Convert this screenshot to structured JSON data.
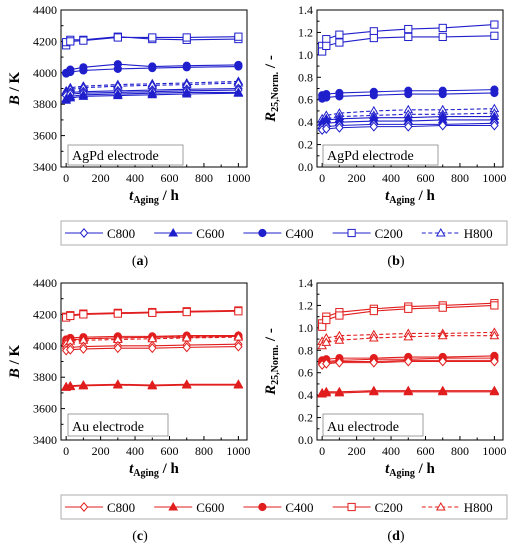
{
  "chart_data": [
    {
      "id": "a",
      "type": "line",
      "panel_label": "(a)",
      "annotation": "AgPd electrode",
      "ylabel_main": "B",
      "ylabel_unit": " / K",
      "xlabel_main": "t",
      "xlabel_sub": "Aging",
      "xlabel_unit": " / h",
      "xlim": [
        -30,
        1050
      ],
      "ylim": [
        3400,
        4400
      ],
      "xticks": [
        0,
        200,
        400,
        600,
        800,
        1000
      ],
      "yticks": [
        3400,
        3600,
        3800,
        4000,
        4200,
        4400
      ],
      "color": "#1f1fcc",
      "x": [
        0,
        24,
        100,
        300,
        500,
        700,
        1000
      ],
      "series": [
        {
          "name": "C200",
          "marker": "square-open",
          "dashed": false,
          "values": [
            4175,
            4210,
            4210,
            4230,
            4215,
            4210,
            4215
          ]
        },
        {
          "name": "C200",
          "marker": "square-open",
          "dashed": false,
          "values": [
            4195,
            4200,
            4205,
            4225,
            4225,
            4225,
            4230
          ]
        },
        {
          "name": "C400",
          "marker": "circle-filled",
          "dashed": false,
          "values": [
            4000,
            4020,
            4035,
            4055,
            4040,
            4045,
            4050
          ]
        },
        {
          "name": "C400",
          "marker": "circle-filled",
          "dashed": false,
          "values": [
            3995,
            4005,
            4015,
            4025,
            4030,
            4035,
            4040
          ]
        },
        {
          "name": "H800",
          "marker": "triangle-open",
          "dashed": true,
          "values": [
            3885,
            3905,
            3915,
            3925,
            3930,
            3935,
            3945
          ]
        },
        {
          "name": "H800",
          "marker": "triangle-open",
          "dashed": true,
          "values": [
            3875,
            3895,
            3905,
            3915,
            3920,
            3925,
            3935
          ]
        },
        {
          "name": "C800",
          "marker": "diamond-open",
          "dashed": false,
          "values": [
            3865,
            3875,
            3880,
            3885,
            3890,
            3895,
            3900
          ]
        },
        {
          "name": "C800",
          "marker": "diamond-open",
          "dashed": false,
          "values": [
            3855,
            3865,
            3870,
            3875,
            3880,
            3885,
            3890
          ]
        },
        {
          "name": "C600",
          "marker": "triangle-filled",
          "dashed": false,
          "values": [
            3835,
            3850,
            3860,
            3865,
            3870,
            3875,
            3875
          ]
        },
        {
          "name": "C600",
          "marker": "triangle-filled",
          "dashed": false,
          "values": [
            3825,
            3840,
            3850,
            3855,
            3860,
            3865,
            3870
          ]
        }
      ]
    },
    {
      "id": "b",
      "type": "line",
      "panel_label": "(b)",
      "annotation": "AgPd electrode",
      "ylabel_main": "R",
      "ylabel_sub": "25,Norm.",
      "ylabel_unit": " / -",
      "xlabel_main": "t",
      "xlabel_sub": "Aging",
      "xlabel_unit": " / h",
      "xlim": [
        -30,
        1050
      ],
      "ylim": [
        0.0,
        1.4
      ],
      "xticks": [
        0,
        200,
        400,
        600,
        800,
        1000
      ],
      "yticks": [
        0.0,
        0.2,
        0.4,
        0.6,
        0.8,
        1.0,
        1.2,
        1.4
      ],
      "ytick_labels": [
        "0.0",
        "0.2",
        "0.4",
        "0.6",
        "0.8",
        "1.0",
        "1.2",
        "1.4"
      ],
      "color": "#1f1fcc",
      "x": [
        0,
        24,
        100,
        300,
        500,
        700,
        1000
      ],
      "series": [
        {
          "name": "C200",
          "marker": "square-open",
          "dashed": false,
          "values": [
            1.08,
            1.14,
            1.18,
            1.21,
            1.23,
            1.24,
            1.27
          ]
        },
        {
          "name": "C200",
          "marker": "square-open",
          "dashed": false,
          "values": [
            1.03,
            1.08,
            1.11,
            1.15,
            1.16,
            1.16,
            1.17
          ]
        },
        {
          "name": "C400",
          "marker": "circle-filled",
          "dashed": false,
          "values": [
            0.64,
            0.65,
            0.66,
            0.67,
            0.68,
            0.68,
            0.69
          ]
        },
        {
          "name": "C400",
          "marker": "circle-filled",
          "dashed": false,
          "values": [
            0.61,
            0.62,
            0.63,
            0.64,
            0.65,
            0.65,
            0.66
          ]
        },
        {
          "name": "H800",
          "marker": "triangle-open",
          "dashed": true,
          "values": [
            0.43,
            0.46,
            0.48,
            0.5,
            0.51,
            0.51,
            0.52
          ]
        },
        {
          "name": "H800",
          "marker": "triangle-open",
          "dashed": true,
          "values": [
            0.4,
            0.43,
            0.45,
            0.46,
            0.47,
            0.47,
            0.48
          ]
        },
        {
          "name": "C600",
          "marker": "triangle-filled",
          "dashed": false,
          "values": [
            0.4,
            0.42,
            0.43,
            0.44,
            0.44,
            0.45,
            0.45
          ]
        },
        {
          "name": "C600",
          "marker": "triangle-filled",
          "dashed": false,
          "values": [
            0.37,
            0.39,
            0.4,
            0.41,
            0.41,
            0.42,
            0.42
          ]
        },
        {
          "name": "C800",
          "marker": "diamond-open",
          "dashed": false,
          "values": [
            0.35,
            0.36,
            0.37,
            0.38,
            0.38,
            0.38,
            0.39
          ]
        },
        {
          "name": "C800",
          "marker": "diamond-open",
          "dashed": false,
          "values": [
            0.33,
            0.34,
            0.35,
            0.36,
            0.36,
            0.37,
            0.37
          ]
        }
      ]
    },
    {
      "id": "c",
      "type": "line",
      "panel_label": "(c)",
      "annotation": "Au electrode",
      "ylabel_main": "B",
      "ylabel_unit": " / K",
      "xlabel_main": "t",
      "xlabel_sub": "Aging",
      "xlabel_unit": " / h",
      "xlim": [
        -30,
        1050
      ],
      "ylim": [
        3400,
        4400
      ],
      "xticks": [
        0,
        200,
        400,
        600,
        800,
        1000
      ],
      "yticks": [
        3400,
        3600,
        3800,
        4000,
        4200,
        4400
      ],
      "color": "#e11d1d",
      "x": [
        0,
        24,
        100,
        300,
        500,
        700,
        1000
      ],
      "series": [
        {
          "name": "C200",
          "marker": "square-open",
          "dashed": false,
          "values": [
            4185,
            4195,
            4205,
            4210,
            4215,
            4220,
            4225
          ]
        },
        {
          "name": "C200",
          "marker": "square-open",
          "dashed": false,
          "values": [
            4180,
            4190,
            4200,
            4205,
            4210,
            4215,
            4220
          ]
        },
        {
          "name": "C400",
          "marker": "circle-filled",
          "dashed": false,
          "values": [
            4040,
            4050,
            4055,
            4060,
            4060,
            4065,
            4065
          ]
        },
        {
          "name": "C400",
          "marker": "circle-filled",
          "dashed": false,
          "values": [
            4025,
            4035,
            4045,
            4050,
            4055,
            4055,
            4060
          ]
        },
        {
          "name": "H800",
          "marker": "triangle-open",
          "dashed": true,
          "values": [
            4030,
            4040,
            4045,
            4050,
            4055,
            4060,
            4065
          ]
        },
        {
          "name": "H800",
          "marker": "triangle-open",
          "dashed": true,
          "values": [
            4015,
            4030,
            4035,
            4040,
            4045,
            4050,
            4055
          ]
        },
        {
          "name": "C800",
          "marker": "diamond-open",
          "dashed": false,
          "values": [
            3985,
            3990,
            3995,
            4000,
            4000,
            4005,
            4010
          ]
        },
        {
          "name": "C800",
          "marker": "diamond-open",
          "dashed": false,
          "values": [
            3970,
            3975,
            3980,
            3985,
            3985,
            3990,
            3995
          ]
        },
        {
          "name": "C600",
          "marker": "triangle-filled",
          "dashed": false,
          "values": [
            3740,
            3745,
            3750,
            3755,
            3750,
            3755,
            3755
          ]
        },
        {
          "name": "C600",
          "marker": "triangle-filled",
          "dashed": false,
          "values": [
            3735,
            3740,
            3745,
            3750,
            3745,
            3750,
            3750
          ]
        }
      ]
    },
    {
      "id": "d",
      "type": "line",
      "panel_label": "(d)",
      "annotation": "Au electrode",
      "ylabel_main": "R",
      "ylabel_sub": "25,Norm.",
      "ylabel_unit": " / -",
      "xlabel_main": "t",
      "xlabel_sub": "Aging",
      "xlabel_unit": " / h",
      "xlim": [
        -30,
        1050
      ],
      "ylim": [
        0.0,
        1.4
      ],
      "xticks": [
        0,
        200,
        400,
        600,
        800,
        1000
      ],
      "yticks": [
        0.0,
        0.2,
        0.4,
        0.6,
        0.8,
        1.0,
        1.2,
        1.4
      ],
      "ytick_labels": [
        "0.0",
        "0.2",
        "0.4",
        "0.6",
        "0.8",
        "1.0",
        "1.2",
        "1.4"
      ],
      "color": "#e11d1d",
      "x": [
        0,
        24,
        100,
        300,
        500,
        700,
        1000
      ],
      "series": [
        {
          "name": "C200",
          "marker": "square-open",
          "dashed": false,
          "values": [
            1.04,
            1.1,
            1.14,
            1.17,
            1.19,
            1.2,
            1.22
          ]
        },
        {
          "name": "C200",
          "marker": "square-open",
          "dashed": false,
          "values": [
            1.01,
            1.07,
            1.11,
            1.15,
            1.17,
            1.18,
            1.2
          ]
        },
        {
          "name": "H800",
          "marker": "triangle-open",
          "dashed": true,
          "values": [
            0.88,
            0.91,
            0.93,
            0.94,
            0.95,
            0.95,
            0.96
          ]
        },
        {
          "name": "H800",
          "marker": "triangle-open",
          "dashed": true,
          "values": [
            0.84,
            0.87,
            0.89,
            0.91,
            0.92,
            0.93,
            0.93
          ]
        },
        {
          "name": "C400",
          "marker": "circle-filled",
          "dashed": false,
          "values": [
            0.71,
            0.72,
            0.73,
            0.73,
            0.74,
            0.74,
            0.75
          ]
        },
        {
          "name": "C400",
          "marker": "circle-filled",
          "dashed": false,
          "values": [
            0.69,
            0.7,
            0.71,
            0.72,
            0.72,
            0.73,
            0.73
          ]
        },
        {
          "name": "C800",
          "marker": "diamond-open",
          "dashed": false,
          "values": [
            0.68,
            0.69,
            0.7,
            0.7,
            0.71,
            0.71,
            0.71
          ]
        },
        {
          "name": "C800",
          "marker": "diamond-open",
          "dashed": false,
          "values": [
            0.67,
            0.68,
            0.69,
            0.69,
            0.7,
            0.7,
            0.7
          ]
        },
        {
          "name": "C600",
          "marker": "triangle-filled",
          "dashed": false,
          "values": [
            0.42,
            0.43,
            0.43,
            0.44,
            0.44,
            0.44,
            0.44
          ]
        },
        {
          "name": "C600",
          "marker": "triangle-filled",
          "dashed": false,
          "values": [
            0.41,
            0.42,
            0.42,
            0.43,
            0.43,
            0.43,
            0.43
          ]
        }
      ]
    }
  ],
  "legends": [
    {
      "color": "#1f1fcc",
      "entries": [
        {
          "label": "C800",
          "marker": "diamond-open",
          "dashed": false
        },
        {
          "label": "C600",
          "marker": "triangle-filled",
          "dashed": false
        },
        {
          "label": "C400",
          "marker": "circle-filled",
          "dashed": false
        },
        {
          "label": "C200",
          "marker": "square-open",
          "dashed": false
        },
        {
          "label": "H800",
          "marker": "triangle-open",
          "dashed": true
        }
      ]
    },
    {
      "color": "#e11d1d",
      "entries": [
        {
          "label": "C800",
          "marker": "diamond-open",
          "dashed": false
        },
        {
          "label": "C600",
          "marker": "triangle-filled",
          "dashed": false
        },
        {
          "label": "C400",
          "marker": "circle-filled",
          "dashed": false
        },
        {
          "label": "C200",
          "marker": "square-open",
          "dashed": false
        },
        {
          "label": "H800",
          "marker": "triangle-open",
          "dashed": true
        }
      ]
    }
  ]
}
